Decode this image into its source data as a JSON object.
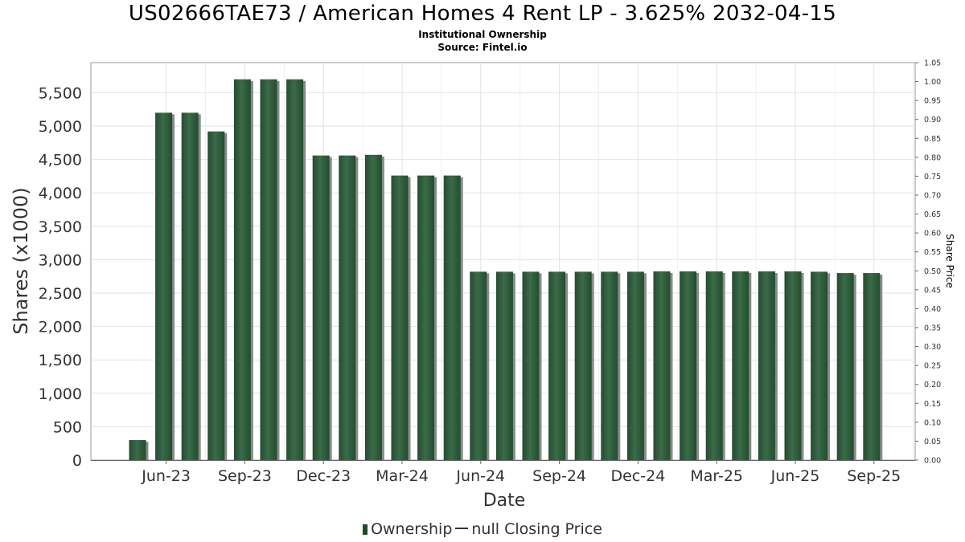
{
  "header": {
    "title": "US02666TAE73 / American Homes 4 Rent LP - 3.625% 2032-04-15",
    "subtitle": "Institutional Ownership",
    "source": "Source: Fintel.io"
  },
  "legend": {
    "ownership_label": "Ownership",
    "price_label": "null Closing Price"
  },
  "colors": {
    "bar": "#234d30",
    "bar_highlight": "#3b6b48",
    "bar_shadow": "#8a8a8a",
    "grid": "#e2e2e2"
  },
  "chart_data": {
    "type": "bar",
    "xlabel": "Date",
    "ylabel": "Shares (x1000)",
    "y2label": "Share Price",
    "ylim": [
      0,
      5950
    ],
    "y2lim": [
      0,
      1.05
    ],
    "yticks": [
      0,
      500,
      1000,
      1500,
      2000,
      2500,
      3000,
      3500,
      4000,
      4500,
      5000,
      5500
    ],
    "ytick_labels": [
      "0",
      "500",
      "1,000",
      "1,500",
      "2,000",
      "2,500",
      "3,000",
      "3,500",
      "4,000",
      "4,500",
      "5,000",
      "5,500"
    ],
    "y2ticks": [
      "0.00",
      "0.05",
      "0.10",
      "0.15",
      "0.20",
      "0.25",
      "0.30",
      "0.35",
      "0.40",
      "0.45",
      "0.50",
      "0.55",
      "0.60",
      "0.65",
      "0.70",
      "0.75",
      "0.80",
      "0.85",
      "0.90",
      "0.95",
      "1.00",
      "1.05"
    ],
    "xtick_labels": [
      "Jun-23",
      "Sep-23",
      "Dec-23",
      "Mar-24",
      "Jun-24",
      "Sep-24",
      "Dec-24",
      "Mar-25",
      "Jun-25",
      "Sep-25"
    ],
    "grid": true,
    "legend_position": "bottom",
    "series": [
      {
        "name": "Ownership",
        "values": [
          300,
          5200,
          5200,
          4920,
          5700,
          5700,
          5700,
          4560,
          4560,
          4570,
          4260,
          4260,
          4260,
          2820,
          2820,
          2820,
          2820,
          2820,
          2820,
          2820,
          2825,
          2825,
          2825,
          2825,
          2825,
          2825,
          2820,
          2800,
          2800
        ]
      }
    ]
  }
}
